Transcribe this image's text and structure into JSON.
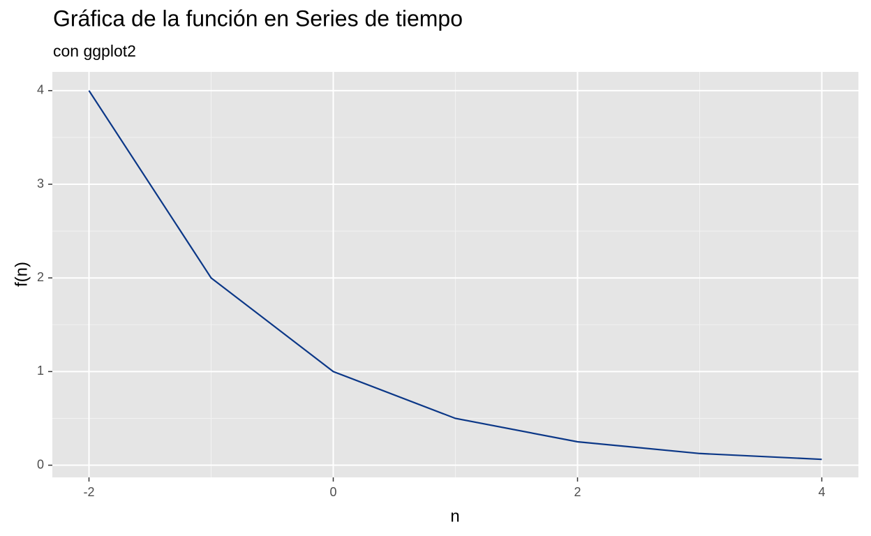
{
  "chart_data": {
    "type": "line",
    "title": "Gráfica de la función en Series de tiempo",
    "subtitle": "con ggplot2",
    "x_label": "n",
    "y_label": "f(n)",
    "x": [
      -2,
      -1,
      0,
      1,
      2,
      3,
      4
    ],
    "series": [
      {
        "color": "#0b3787",
        "values": [
          4,
          2,
          1,
          0.5,
          0.25,
          0.125,
          0.0625
        ]
      }
    ],
    "xlim": [
      -2.3,
      4.3
    ],
    "ylim": [
      -0.13,
      4.2
    ],
    "xticks": [
      -2,
      0,
      2,
      4
    ],
    "yticks": [
      0,
      1,
      2,
      3,
      4
    ],
    "x_minor_ticks": [
      -1,
      1,
      3
    ],
    "y_minor_ticks": [
      0.5,
      1.5,
      2.5,
      3.5
    ],
    "grid": true
  }
}
